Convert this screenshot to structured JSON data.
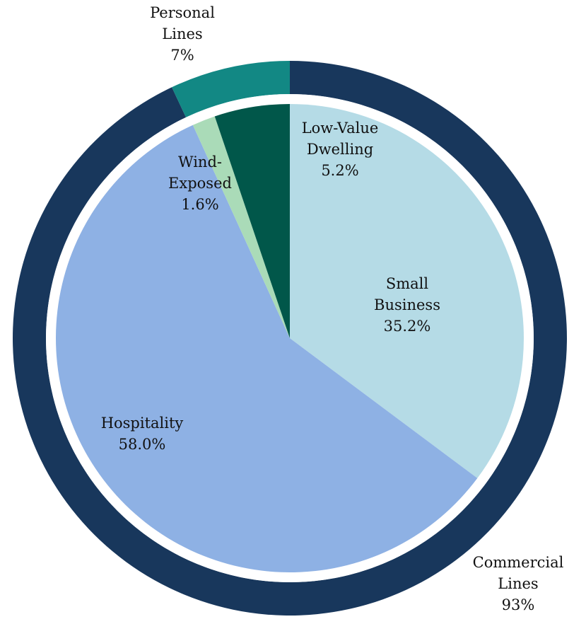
{
  "chart_data": {
    "type": "pie",
    "title": "",
    "outer_ring": {
      "slices": [
        {
          "name_lines": [
            "Commercial",
            "Lines"
          ],
          "value_label": "93%",
          "value": 93,
          "color": "#18375c"
        },
        {
          "name_lines": [
            "Personal",
            "Lines"
          ],
          "value_label": "7%",
          "value": 7,
          "color": "#128884"
        }
      ]
    },
    "inner_pie": {
      "slices": [
        {
          "name_lines": [
            "Small",
            "Business"
          ],
          "value_label": "35.2%",
          "value": 35.2,
          "color": "#b5dbe6"
        },
        {
          "name_lines": [
            "Hospitality"
          ],
          "value_label": "58.0%",
          "value": 58.0,
          "color": "#8eb1e4"
        },
        {
          "name_lines": [
            "Wind-",
            "Exposed"
          ],
          "value_label": "1.6%",
          "value": 1.6,
          "color": "#aadbb8"
        },
        {
          "name_lines": [
            "Low-Value",
            "Dwelling"
          ],
          "value_label": "5.2%",
          "value": 5.2,
          "color": "#01574a"
        }
      ]
    }
  }
}
